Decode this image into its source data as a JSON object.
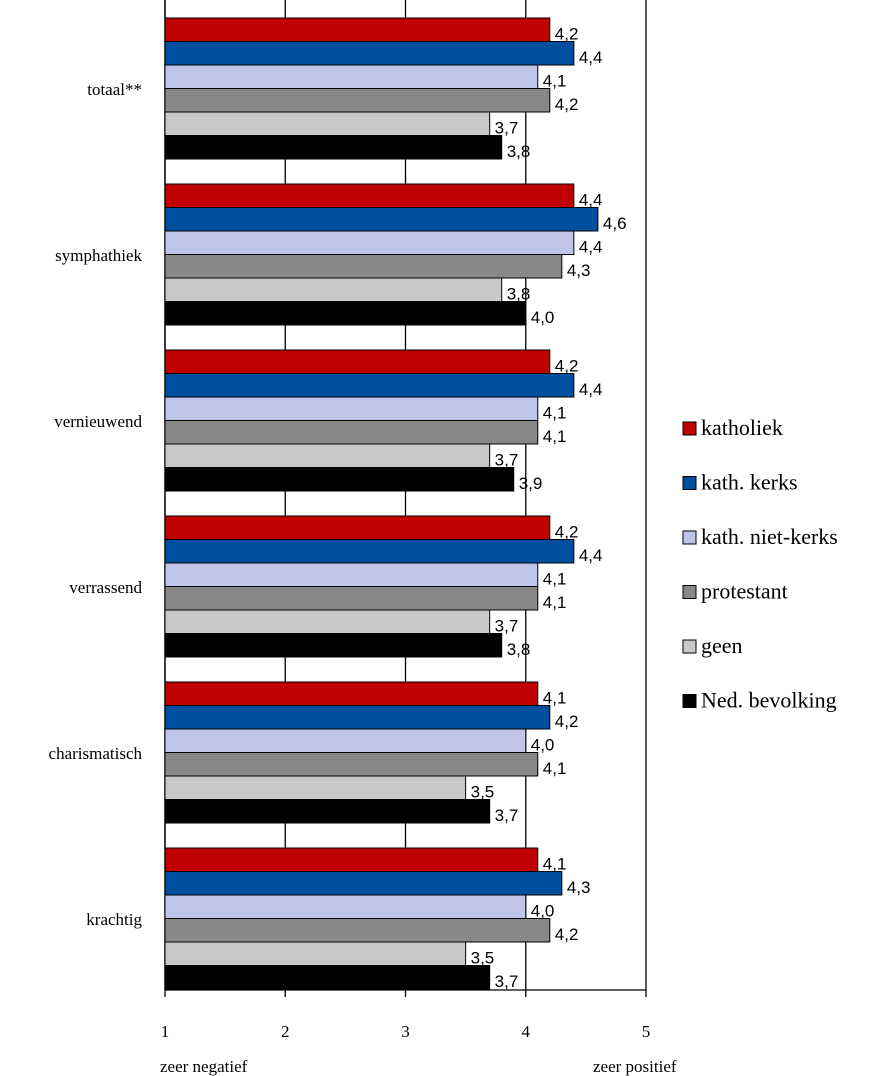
{
  "chart_data": {
    "type": "barh",
    "categories": [
      "totaal**",
      "symphathiek",
      "vernieuwend",
      "verrassend",
      "charismatisch",
      "krachtig"
    ],
    "series": [
      {
        "name": "katholiek",
        "color": "#c00000",
        "values": [
          4.2,
          4.4,
          4.2,
          4.2,
          4.1,
          4.1
        ],
        "value_labels": [
          "4,2",
          "4,4",
          "4,2",
          "4,2",
          "4,1",
          "4,1"
        ]
      },
      {
        "name": "kath. kerks",
        "color": "#004f9f",
        "values": [
          4.4,
          4.6,
          4.4,
          4.4,
          4.2,
          4.3
        ],
        "value_labels": [
          "4,4",
          "4,6",
          "4,4",
          "4,4",
          "4,2",
          "4,3"
        ]
      },
      {
        "name": "kath. niet-kerks",
        "color": "#bfc5e8",
        "values": [
          4.1,
          4.4,
          4.1,
          4.1,
          4.0,
          4.0
        ],
        "value_labels": [
          "4,1",
          "4,4",
          "4,1",
          "4,1",
          "4,0",
          "4,0"
        ]
      },
      {
        "name": "protestant",
        "color": "#888888",
        "values": [
          4.2,
          4.3,
          4.1,
          4.1,
          4.1,
          4.2
        ],
        "value_labels": [
          "4,2",
          "4,3",
          "4,1",
          "4,1",
          "4,1",
          "4,2"
        ]
      },
      {
        "name": "geen",
        "color": "#c8c8c8",
        "values": [
          3.7,
          3.8,
          3.7,
          3.7,
          3.5,
          3.5
        ],
        "value_labels": [
          "3,7",
          "3,8",
          "3,7",
          "3,7",
          "3,5",
          "3,5"
        ]
      },
      {
        "name": "Ned. bevolking",
        "color": "#000000",
        "values": [
          3.8,
          4.0,
          3.9,
          3.8,
          3.7,
          3.7
        ],
        "value_labels": [
          "3,8",
          "4,0",
          "3,9",
          "3,8",
          "3,7",
          "3,7"
        ]
      }
    ],
    "xlim": [
      1,
      5
    ],
    "xticks": [
      1,
      2,
      3,
      4,
      5
    ],
    "grid": true,
    "legend": "right",
    "annotations": [
      "zeer negatief",
      "zeer positief"
    ]
  }
}
